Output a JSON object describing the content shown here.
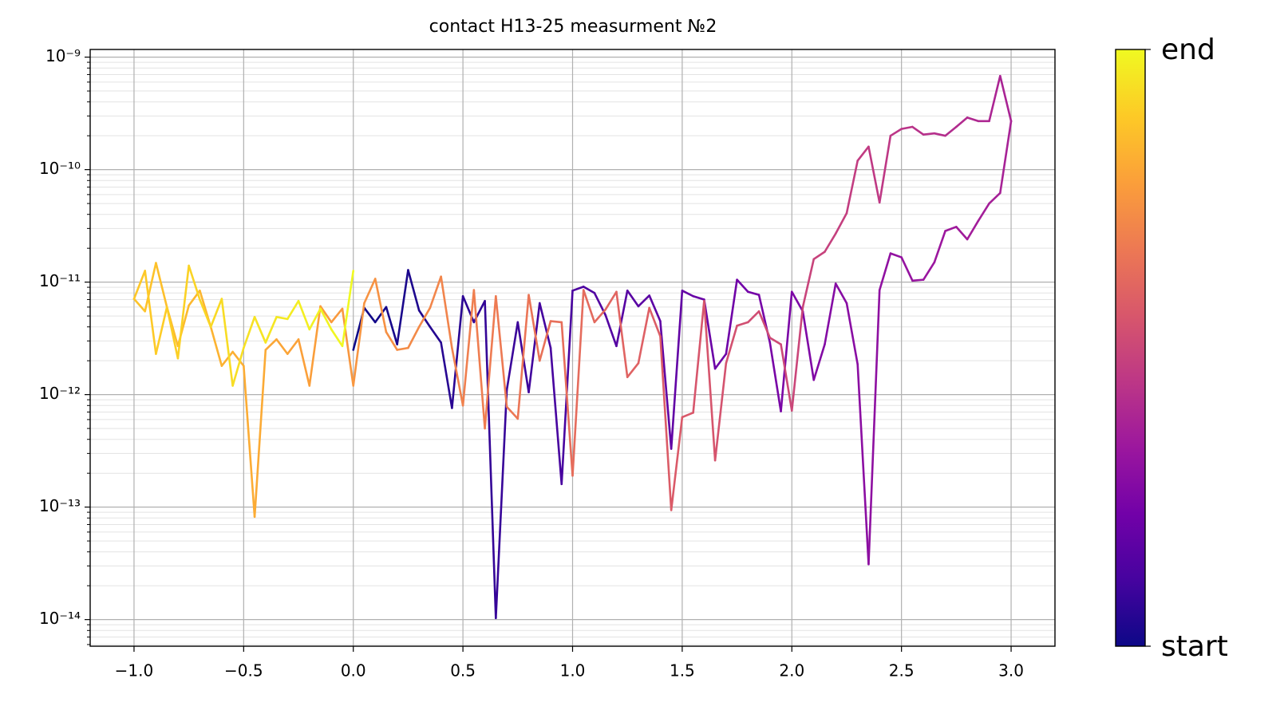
{
  "chart_data": {
    "type": "line",
    "title": "contact H13-25 measurment №2",
    "log_y": true,
    "grid": true,
    "minor_grid": true,
    "xlim": [
      -1.2,
      3.2
    ],
    "ylim": [
      5.8e-15,
      1.17e-09
    ],
    "xticks": [
      {
        "value": -1,
        "label": "−1.0"
      },
      {
        "value": -0.5,
        "label": "−0.5"
      },
      {
        "value": 0,
        "label": "0.0"
      },
      {
        "value": 0.5,
        "label": "0.5"
      },
      {
        "value": 1,
        "label": "1.0"
      },
      {
        "value": 1.5,
        "label": "1.5"
      },
      {
        "value": 2,
        "label": "2.0"
      },
      {
        "value": 2.5,
        "label": "2.5"
      },
      {
        "value": 3,
        "label": "3.0"
      }
    ],
    "yticks": [
      {
        "value": 1e-14,
        "label": "10⁻¹⁴"
      },
      {
        "value": 1e-13,
        "label": "10⁻¹³"
      },
      {
        "value": 1e-12,
        "label": "10⁻¹²"
      },
      {
        "value": 1e-11,
        "label": "10⁻¹¹"
      },
      {
        "value": 1e-10,
        "label": "10⁻¹⁰"
      },
      {
        "value": 1e-09,
        "label": "10⁻⁹"
      }
    ],
    "colormap": [
      "#0d0887",
      "#46039f",
      "#7201a8",
      "#9c179e",
      "#bd3786",
      "#d8576b",
      "#ed7953",
      "#fb9f3a",
      "#fdca26",
      "#f0f921"
    ],
    "colorbar_labels": [
      "start",
      "end"
    ],
    "x": [
      0,
      0.05,
      0.1,
      0.15,
      0.2,
      0.25,
      0.3,
      0.35,
      0.4,
      0.45,
      0.5,
      0.55,
      0.6,
      0.65,
      0.7,
      0.75,
      0.8,
      0.85,
      0.9,
      0.95,
      1,
      1.05,
      1.1,
      1.15,
      1.2,
      1.25,
      1.3,
      1.35,
      1.4,
      1.45,
      1.5,
      1.55,
      1.6,
      1.65,
      1.7,
      1.75,
      1.8,
      1.85,
      1.9,
      1.95,
      2,
      2.05,
      2.1,
      2.15,
      2.2,
      2.25,
      2.3,
      2.35,
      2.4,
      2.45,
      2.5,
      2.55,
      2.6,
      2.65,
      2.7,
      2.75,
      2.8,
      2.85,
      2.9,
      2.95,
      3,
      2.95,
      2.9,
      2.85,
      2.8,
      2.75,
      2.7,
      2.65,
      2.6,
      2.55,
      2.5,
      2.45,
      2.4,
      2.35,
      2.3,
      2.25,
      2.2,
      2.15,
      2.1,
      2.05,
      2,
      1.95,
      1.9,
      1.85,
      1.8,
      1.75,
      1.7,
      1.65,
      1.6,
      1.55,
      1.5,
      1.45,
      1.4,
      1.35,
      1.3,
      1.25,
      1.2,
      1.15,
      1.1,
      1.05,
      1,
      0.95,
      0.9,
      0.85,
      0.8,
      0.75,
      0.7,
      0.65,
      0.6,
      0.55,
      0.5,
      0.45,
      0.4,
      0.35,
      0.3,
      0.25,
      0.2,
      0.15,
      0.1,
      0.05,
      0,
      -0.05,
      -0.1,
      -0.15,
      -0.2,
      -0.25,
      -0.3,
      -0.35,
      -0.4,
      -0.45,
      -0.5,
      -0.55,
      -0.6,
      -0.65,
      -0.7,
      -0.75,
      -0.8,
      -0.85,
      -0.9,
      -0.95,
      -1,
      -0.95,
      -0.9,
      -0.85,
      -0.8,
      -0.75,
      -0.7,
      -0.65,
      -0.6,
      -0.55,
      -0.5,
      -0.45,
      -0.4,
      -0.35,
      -0.3,
      -0.25,
      -0.2,
      -0.15,
      -0.1,
      -0.05,
      0
    ],
    "values": [
      2.5e-12,
      5.9e-12,
      4.4e-12,
      6e-12,
      2.8e-12,
      1.28e-11,
      5.6e-12,
      4e-12,
      2.9e-12,
      7.6e-13,
      7.5e-12,
      4.4e-12,
      6.8e-12,
      1.03e-14,
      1.1e-12,
      4.4e-12,
      1.05e-12,
      6.5e-12,
      2.6e-12,
      1.6e-13,
      8.4e-12,
      9.1e-12,
      8e-12,
      5.1e-12,
      2.7e-12,
      8.4e-12,
      6.1e-12,
      7.6e-12,
      4.5e-12,
      3.3e-13,
      8.4e-12,
      7.5e-12,
      7e-12,
      1.7e-12,
      2.3e-12,
      1.05e-11,
      8.2e-12,
      7.7e-12,
      2.9e-12,
      7.1e-13,
      8.2e-12,
      5.5e-12,
      1.35e-12,
      2.8e-12,
      9.7e-12,
      6.5e-12,
      1.86e-12,
      3.1e-14,
      8.5e-12,
      1.8e-11,
      1.66e-11,
      1.03e-11,
      1.05e-11,
      1.5e-11,
      2.85e-11,
      3.1e-11,
      2.4e-11,
      3.5e-11,
      5e-11,
      6.2e-11,
      2.7e-10,
      6.8e-10,
      2.7e-10,
      2.7e-10,
      2.9e-10,
      2.4e-10,
      2e-10,
      2.1e-10,
      2.05e-10,
      2.4e-10,
      2.3e-10,
      2e-10,
      5.1e-11,
      1.6e-10,
      1.2e-10,
      4.1e-11,
      2.7e-11,
      1.86e-11,
      1.6e-11,
      6e-12,
      7.2e-13,
      2.8e-12,
      3.2e-12,
      5.5e-12,
      4.4e-12,
      4.1e-12,
      1.9e-12,
      2.6e-13,
      6.8e-12,
      6.9e-13,
      6.3e-13,
      9.4e-14,
      3.3e-12,
      5.9e-12,
      1.9e-12,
      1.43e-12,
      8.2e-12,
      5.7e-12,
      4.4e-12,
      8.5e-12,
      1.9e-13,
      4.4e-12,
      4.5e-12,
      2e-12,
      7.7e-12,
      6.1e-13,
      7.8e-13,
      7.5e-12,
      5e-13,
      8.5e-12,
      8e-13,
      2.6e-12,
      1.12e-11,
      5.9e-12,
      4e-12,
      2.6e-12,
      2.5e-12,
      3.6e-12,
      1.07e-11,
      6.5e-12,
      1.2e-12,
      5.8e-12,
      4.4e-12,
      6.1e-12,
      1.2e-12,
      3.1e-12,
      2.3e-12,
      3.1e-12,
      2.5e-12,
      8.2e-14,
      1.8e-12,
      2.4e-12,
      1.8e-12,
      4e-12,
      8.4e-12,
      6.2e-12,
      2.7e-12,
      6e-12,
      1.48e-11,
      5.5e-12,
      7.1e-12,
      1.26e-11,
      2.3e-12,
      6e-12,
      2.1e-12,
      1.4e-11,
      7e-12,
      4e-12,
      7.1e-12,
      1.2e-12,
      2.6e-12,
      4.9e-12,
      2.9e-12,
      4.9e-12,
      4.7e-12,
      6.8e-12,
      3.8e-12,
      5.8e-12,
      3.8e-12,
      2.7e-12,
      1.26e-11
    ]
  }
}
